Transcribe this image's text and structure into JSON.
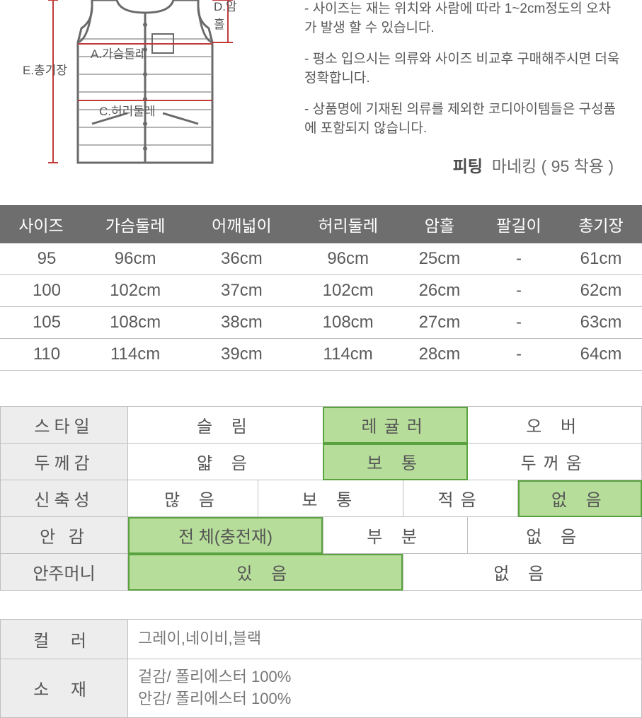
{
  "diagram": {
    "labels": {
      "A": "A.가슴둘레",
      "C": "C.허리둘레",
      "D": "D.암홀",
      "E": "E.총기장"
    },
    "line_color": "#c23a3a",
    "garment_stroke": "#6a6a6a",
    "garment_fill": "#ffffff"
  },
  "notes": [
    "- 사이즈는 재는 위치와 사람에 따라 1~2cm정도의 오차가 발생 할 수 있습니다.",
    "- 평소 입으시는 의류와 사이즈 비교후 구매해주시면 더욱 정확합니다.",
    "- 상품명에 기재된 의류를 제외한 코디아이템들은 구성품에 포함되지 않습니다."
  ],
  "fitting": {
    "label": "피팅",
    "value": "마네킹 ( 95 착용 )"
  },
  "sizeTable": {
    "header_bg": "#6e6e6e",
    "header_fg": "#ffffff",
    "row_border": "#bfbfbf",
    "columns": [
      "사이즈",
      "가슴둘레",
      "어깨넓이",
      "허리둘레",
      "암홀",
      "팔길이",
      "총기장"
    ],
    "rows": [
      [
        "95",
        "96cm",
        "36cm",
        "96cm",
        "25cm",
        "-",
        "61cm"
      ],
      [
        "100",
        "102cm",
        "37cm",
        "102cm",
        "26cm",
        "-",
        "62cm"
      ],
      [
        "105",
        "108cm",
        "38cm",
        "108cm",
        "27cm",
        "-",
        "63cm"
      ],
      [
        "110",
        "114cm",
        "39cm",
        "114cm",
        "28cm",
        "-",
        "64cm"
      ]
    ]
  },
  "attrMatrix": {
    "selected_bg": "#b6dd9a",
    "selected_border": "#5aa13f",
    "cell_border": "#bfbfbf",
    "header_bg": "#ededed",
    "rows": [
      {
        "label": "스타일",
        "options": [
          "슬 림",
          "레귤러",
          "오 버"
        ],
        "colspans": [
          1,
          1,
          1
        ],
        "selected": 1
      },
      {
        "label": "두께감",
        "options": [
          "얇 음",
          "보 통",
          "두꺼움"
        ],
        "colspans": [
          1,
          1,
          1
        ],
        "selected": 1
      },
      {
        "label": "신축성",
        "options": [
          "많 음",
          "보 통",
          "적음",
          "없 음"
        ],
        "colspans": [
          1,
          1,
          1,
          1
        ],
        "selected": 3
      },
      {
        "label": "안  감",
        "options": [
          "전   체(충전재)",
          "부   분",
          "없 음"
        ],
        "colspans": [
          1,
          1,
          1
        ],
        "selected": 0
      },
      {
        "label": "안주머니",
        "tight": true,
        "options": [
          "있 음",
          "없 음"
        ],
        "colspans": [
          2,
          2
        ],
        "selected": 0
      }
    ],
    "grid_cols": 4
  },
  "infoTable": {
    "rows": [
      {
        "label": "컬  러",
        "value": "그레이,네이비,블랙"
      },
      {
        "label": "소  재",
        "value": "겉감/ 폴리에스터 100%\n안감/ 폴리에스터 100%"
      }
    ]
  }
}
